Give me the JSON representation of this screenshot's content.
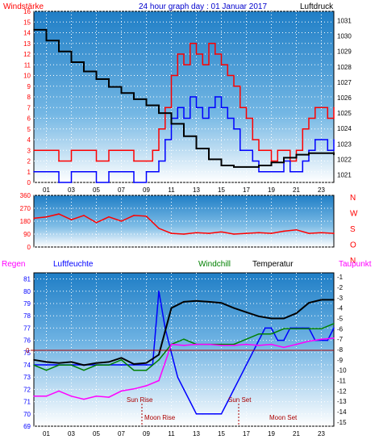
{
  "header": {
    "left_label": "Windstärke",
    "title": "24 hour graph day : 01 Januar 2017",
    "right_label": "Luftdruck"
  },
  "colors": {
    "red": "#ff0000",
    "blue": "#0000ff",
    "black": "#000000",
    "green": "#008000",
    "magenta": "#ff00ff",
    "darkred": "#aa0000"
  },
  "chart_data": [
    {
      "type": "line",
      "id": "wind_pressure",
      "x_ticks": [
        "01",
        "03",
        "05",
        "07",
        "09",
        "11",
        "13",
        "15",
        "17",
        "19",
        "21",
        "23"
      ],
      "y_left": {
        "label": "Windstärke",
        "ticks": [
          0,
          1,
          2,
          3,
          4,
          5,
          6,
          7,
          8,
          9,
          10,
          11,
          12,
          13,
          14,
          15,
          16
        ],
        "range": [
          0,
          16
        ]
      },
      "y_right": {
        "label": "Luftdruck",
        "ticks": [
          1021,
          1022,
          1023,
          1024,
          1025,
          1026,
          1027,
          1028,
          1029,
          1030,
          1031
        ],
        "range": [
          1020.5,
          1031.6
        ]
      },
      "series": [
        {
          "name": "gust",
          "axis": "left",
          "color": "#ff0000",
          "x": [
            0,
            1,
            2,
            3,
            4,
            5,
            6,
            7,
            8,
            9,
            9.5,
            10,
            10.5,
            11,
            11.5,
            12,
            12.5,
            13,
            13.5,
            14,
            14.5,
            15,
            15.5,
            16,
            16.5,
            17,
            17.5,
            18,
            18.5,
            19,
            19.5,
            20,
            20.5,
            21,
            21.5,
            22,
            22.5,
            23,
            23.5,
            24
          ],
          "y": [
            3,
            3,
            2,
            3,
            3,
            2,
            3,
            3,
            2,
            2,
            3,
            5,
            7,
            10,
            12,
            11,
            13,
            12,
            11,
            13,
            12,
            11,
            10,
            9,
            7,
            6,
            4,
            3,
            3,
            2,
            3,
            3,
            2,
            3,
            5,
            6,
            7,
            7,
            6,
            7
          ]
        },
        {
          "name": "wind",
          "axis": "left",
          "color": "#0000ff",
          "x": [
            0,
            1,
            2,
            3,
            4,
            5,
            6,
            7,
            8,
            9,
            9.5,
            10,
            10.5,
            11,
            11.5,
            12,
            12.5,
            13,
            13.5,
            14,
            14.5,
            15,
            15.5,
            16,
            16.5,
            17,
            17.5,
            18,
            18.5,
            19,
            19.5,
            20,
            20.5,
            21,
            21.5,
            22,
            22.5,
            23,
            23.5,
            24
          ],
          "y": [
            1,
            1,
            0,
            1,
            1,
            0,
            1,
            1,
            0,
            1,
            1,
            2,
            4,
            6,
            7,
            6,
            8,
            7,
            6,
            7,
            8,
            7,
            6,
            5,
            3,
            3,
            2,
            1,
            1,
            1,
            1,
            2,
            1,
            1,
            2,
            3,
            4,
            4,
            3,
            4
          ]
        },
        {
          "name": "pressure",
          "axis": "right",
          "color": "#000000",
          "x": [
            0,
            1,
            2,
            3,
            4,
            5,
            6,
            7,
            8,
            9,
            10,
            11,
            12,
            13,
            14,
            15,
            16,
            17,
            18,
            19,
            20,
            21,
            22,
            23,
            24
          ],
          "y": [
            1030.4,
            1029.7,
            1029.0,
            1028.3,
            1027.7,
            1027.2,
            1026.7,
            1026.3,
            1025.9,
            1025.5,
            1025.0,
            1024.3,
            1023.5,
            1022.7,
            1022.0,
            1021.6,
            1021.5,
            1021.5,
            1021.6,
            1021.8,
            1022.1,
            1022.3,
            1022.4,
            1022.4,
            1022.3
          ]
        }
      ]
    },
    {
      "type": "line",
      "id": "wind_direction",
      "y_left": {
        "ticks": [
          0,
          90,
          180,
          270,
          360
        ],
        "range": [
          0,
          360
        ]
      },
      "y_right": {
        "labels": [
          "N",
          "W",
          "S",
          "O",
          "N"
        ]
      },
      "series": [
        {
          "name": "direction",
          "color": "#ff0000",
          "x": [
            0,
            1,
            2,
            3,
            4,
            5,
            6,
            7,
            8,
            9,
            10,
            11,
            12,
            13,
            14,
            15,
            16,
            17,
            18,
            19,
            20,
            21,
            22,
            23,
            24
          ],
          "y": [
            200,
            210,
            230,
            190,
            220,
            170,
            210,
            180,
            220,
            215,
            130,
            95,
            90,
            100,
            95,
            105,
            90,
            95,
            100,
            95,
            110,
            120,
            95,
            100,
            95
          ]
        }
      ]
    },
    {
      "type": "line",
      "id": "humidity_temperature",
      "x_ticks": [
        "01",
        "03",
        "05",
        "07",
        "09",
        "11",
        "13",
        "15",
        "17",
        "19",
        "21",
        "23"
      ],
      "legend": [
        "Regen",
        "Luftfeuchte",
        "Windchill",
        "Temperatur",
        "Taupunkt"
      ],
      "y_left": {
        "ticks": [
          69,
          70,
          71,
          72,
          73,
          74,
          75,
          76,
          77,
          78,
          79,
          80,
          81
        ],
        "range": [
          69,
          81.5
        ],
        "zero_label": "0"
      },
      "y_right": {
        "ticks": [
          -15,
          -14,
          -13,
          -12,
          -11,
          -10,
          -9,
          -8,
          -7,
          -6,
          -5,
          -4,
          -3,
          -2,
          -1
        ],
        "range": [
          -15.4,
          -0.6
        ]
      },
      "annotations": [
        "Sun Rise",
        "Sun Set",
        "Moon Rise",
        "Moon Set"
      ],
      "series": [
        {
          "name": "Luftfeuchte",
          "axis": "left",
          "color": "#0000ff",
          "x": [
            0,
            1,
            2,
            3,
            4,
            5,
            6,
            7,
            8,
            9,
            9.5,
            10,
            10.5,
            11,
            11.5,
            12,
            12.5,
            13,
            13.5,
            14,
            14.5,
            15,
            15.5,
            16,
            16.5,
            17,
            17.5,
            18,
            18.5,
            19,
            19.5,
            20,
            20.5,
            21,
            21.5,
            22,
            22.5,
            23,
            23.5,
            24
          ],
          "y": [
            74,
            74,
            74,
            74,
            74,
            74,
            74,
            74,
            74,
            74,
            74,
            80,
            77,
            75,
            73,
            72,
            71,
            70,
            70,
            70,
            70,
            70,
            71,
            72,
            73,
            74,
            75,
            76,
            77,
            77,
            76,
            76,
            77,
            77,
            77,
            77,
            76,
            76,
            76,
            77
          ]
        },
        {
          "name": "Windchill",
          "axis": "right",
          "color": "#008000",
          "x": [
            0,
            1,
            2,
            3,
            4,
            5,
            6,
            7,
            8,
            9,
            10,
            11,
            12,
            13,
            14,
            15,
            16,
            17,
            18,
            19,
            20,
            21,
            22,
            23,
            24
          ],
          "y": [
            -9.5,
            -10,
            -9.5,
            -9.5,
            -10,
            -9.5,
            -9.5,
            -9,
            -10,
            -10,
            -9,
            -7.5,
            -7,
            -7.5,
            -7.5,
            -7.5,
            -7.5,
            -7,
            -6.5,
            -6.5,
            -6,
            -6,
            -6,
            -6,
            -5.5
          ]
        },
        {
          "name": "Temperatur",
          "axis": "right",
          "color": "#000000",
          "x": [
            0,
            1,
            2,
            3,
            4,
            5,
            6,
            7,
            8,
            9,
            10,
            11,
            12,
            13,
            14,
            15,
            16,
            17,
            18,
            19,
            20,
            21,
            22,
            23,
            24
          ],
          "y": [
            -9,
            -9.2,
            -9.3,
            -9.2,
            -9.5,
            -9.3,
            -9.2,
            -8.8,
            -9.4,
            -9.3,
            -8.5,
            -4,
            -3.4,
            -3.3,
            -3.4,
            -3.5,
            -4,
            -4.4,
            -4.8,
            -5,
            -5,
            -4.5,
            -3.5,
            -3.2,
            -3.2
          ]
        },
        {
          "name": "Taupunkt",
          "axis": "right",
          "color": "#ff00ff",
          "x": [
            0,
            1,
            2,
            3,
            4,
            5,
            6,
            7,
            8,
            9,
            10,
            11,
            12,
            13,
            14,
            15,
            16,
            17,
            18,
            19,
            20,
            21,
            22,
            23,
            24
          ],
          "y": [
            -12.5,
            -12.5,
            -12,
            -12.5,
            -12.8,
            -12.5,
            -12.6,
            -12,
            -11.8,
            -11.5,
            -11,
            -7.5,
            -7.6,
            -7.5,
            -7.5,
            -7.6,
            -7.6,
            -7.5,
            -7.6,
            -7.5,
            -7.8,
            -7.5,
            -7.2,
            -7.0,
            -6.9
          ]
        }
      ]
    }
  ]
}
